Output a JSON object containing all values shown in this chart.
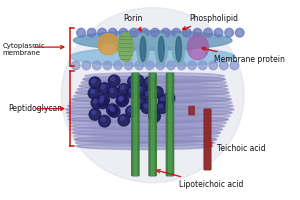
{
  "bg_color": "#ffffff",
  "labels": {
    "lipoteichoic_acid": "Lipoteichoic acid",
    "teichoic_acid": "Teichoic acid",
    "peptidoglycan": "Peptidoglycan",
    "cytoplasmic_membrane": "Cytoplasmic\nmembrane",
    "membrane_protein": "Membrane protein",
    "porin": "Porin",
    "phospholipid": "Phospholipid"
  },
  "colors": {
    "sphere_bg": "#d8d8e8",
    "tube_a": "#8888bb",
    "tube_b": "#9999cc",
    "dark_sphere": "#1a1a55",
    "sphere_shine": "#4444aa",
    "green_rod": "#3a7a3a",
    "green_rod_light": "#55aa55",
    "dark_red_rod": "#882222",
    "membrane_outer": "#88bbdd",
    "membrane_inner": "#6699bb",
    "porin_outer": "#7aaabb",
    "porin_inner": "#336688",
    "protein_orange": "#cc9944",
    "protein_green": "#77aa55",
    "protein_purple": "#9966aa",
    "phospholipid": "#8899cc",
    "phospholipid2": "#6677bb",
    "arrow_color": "#cc1111",
    "text_color": "#111111",
    "bracket_color": "#cc1111"
  },
  "figure_size": [
    3.0,
    2.0
  ],
  "dpi": 100
}
